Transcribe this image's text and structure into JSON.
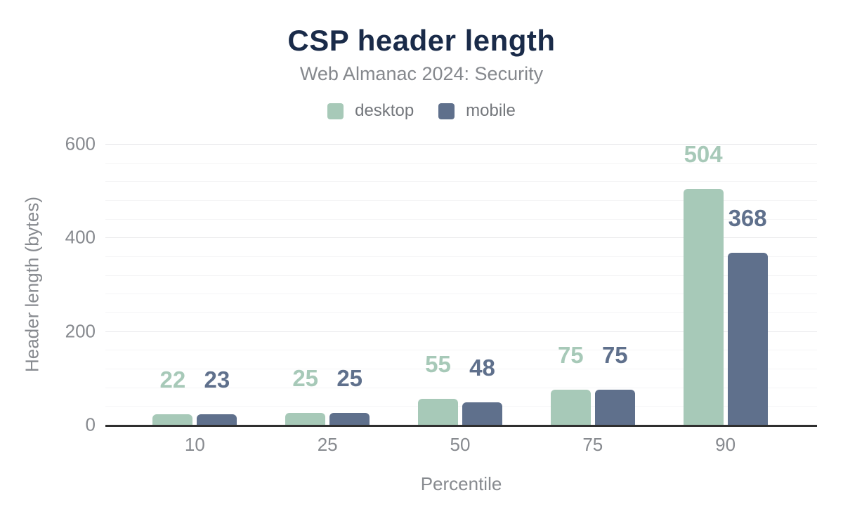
{
  "chart_data": {
    "type": "bar",
    "title": "CSP header length",
    "subtitle": "Web Almanac 2024: Security",
    "categories": [
      "10",
      "25",
      "50",
      "75",
      "90"
    ],
    "series": [
      {
        "name": "desktop",
        "color": "#a7c9b8",
        "values": [
          22,
          25,
          55,
          75,
          504
        ]
      },
      {
        "name": "mobile",
        "color": "#5f708c",
        "values": [
          23,
          25,
          48,
          75,
          368
        ]
      }
    ],
    "xlabel": "Percentile",
    "ylabel": "Header length (bytes)",
    "ylim": [
      0,
      600
    ],
    "yticks": [
      0,
      200,
      400,
      600
    ],
    "y_minor_step": 40,
    "grid": true,
    "legend_position": "top",
    "value_labels": true
  },
  "colors": {
    "title": "#1a2b49",
    "subtitle": "#85888d",
    "legend_text": "#74777c",
    "axis_text": "#878a8f",
    "grid_major": "#e9e9eb",
    "grid_minor": "#f5f5f6",
    "axis_line": "#2f2f2f",
    "background": "#ffffff"
  }
}
